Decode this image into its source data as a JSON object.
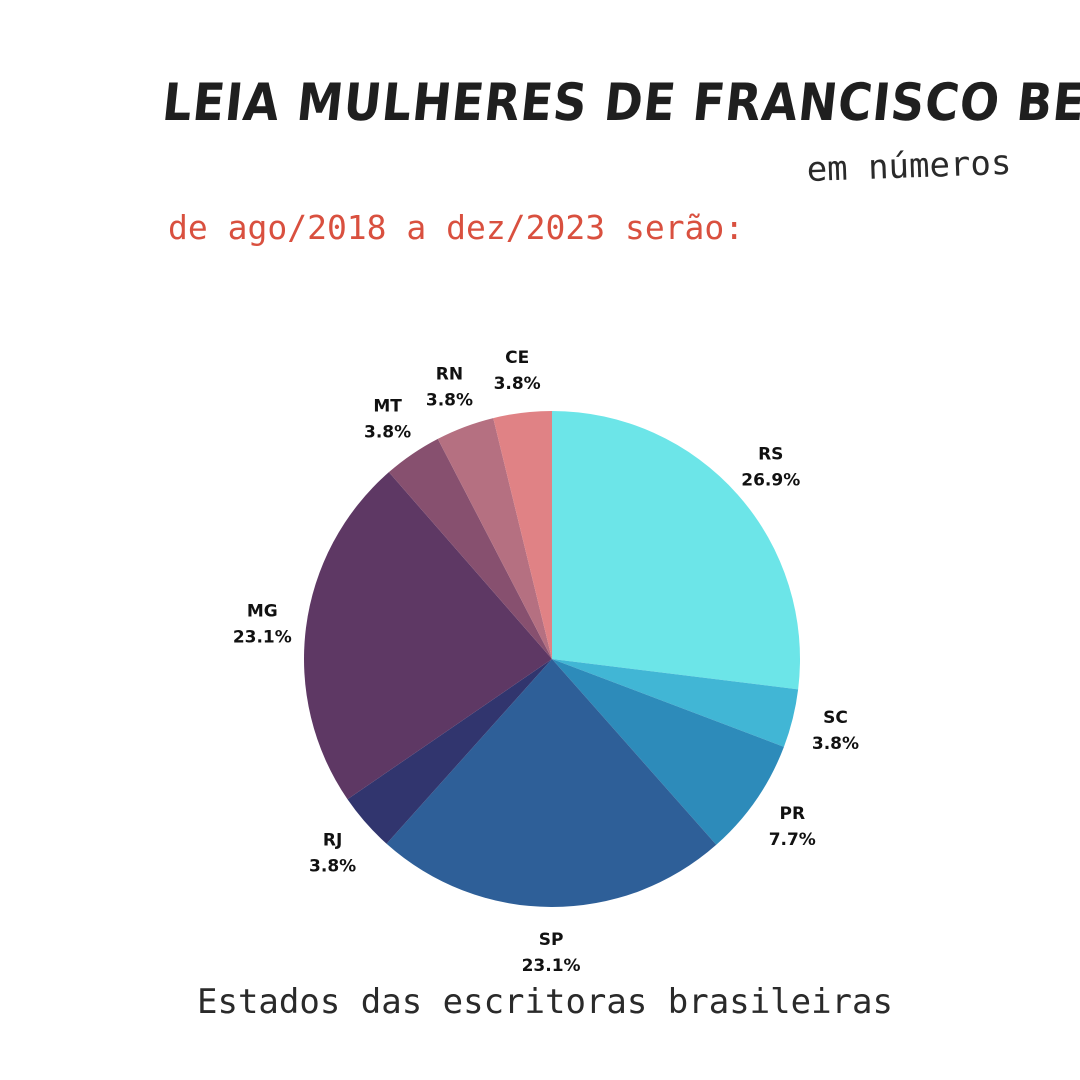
{
  "header": {
    "title": "LEIA MULHERES DE FRANCISCO BELTRÃO",
    "subtitle": "em números",
    "period": "de ago/2018 a dez/2023 serão:"
  },
  "chart_data": {
    "type": "pie",
    "title": "Estados das escritoras brasileiras",
    "start_angle": "12 o'clock",
    "direction": "clockwise",
    "slices": [
      {
        "label": "RS",
        "value": 26.9,
        "display": "26.9%",
        "color": "#6ce5e8"
      },
      {
        "label": "SC",
        "value": 3.8,
        "display": "3.8%",
        "color": "#41b6d5"
      },
      {
        "label": "PR",
        "value": 7.7,
        "display": "7.7%",
        "color": "#2d8bba"
      },
      {
        "label": "SP",
        "value": 23.1,
        "display": "23.1%",
        "color": "#2e5f98"
      },
      {
        "label": "RJ",
        "value": 3.8,
        "display": "3.8%",
        "color": "#31356e"
      },
      {
        "label": "MG",
        "value": 23.1,
        "display": "23.1%",
        "color": "#5e3864"
      },
      {
        "label": "MT",
        "value": 3.8,
        "display": "3.8%",
        "color": "#87506f"
      },
      {
        "label": "RN",
        "value": 3.8,
        "display": "3.8%",
        "color": "#b57081"
      },
      {
        "label": "CE",
        "value": 3.8,
        "display": "3.8%",
        "color": "#e08285"
      }
    ]
  }
}
